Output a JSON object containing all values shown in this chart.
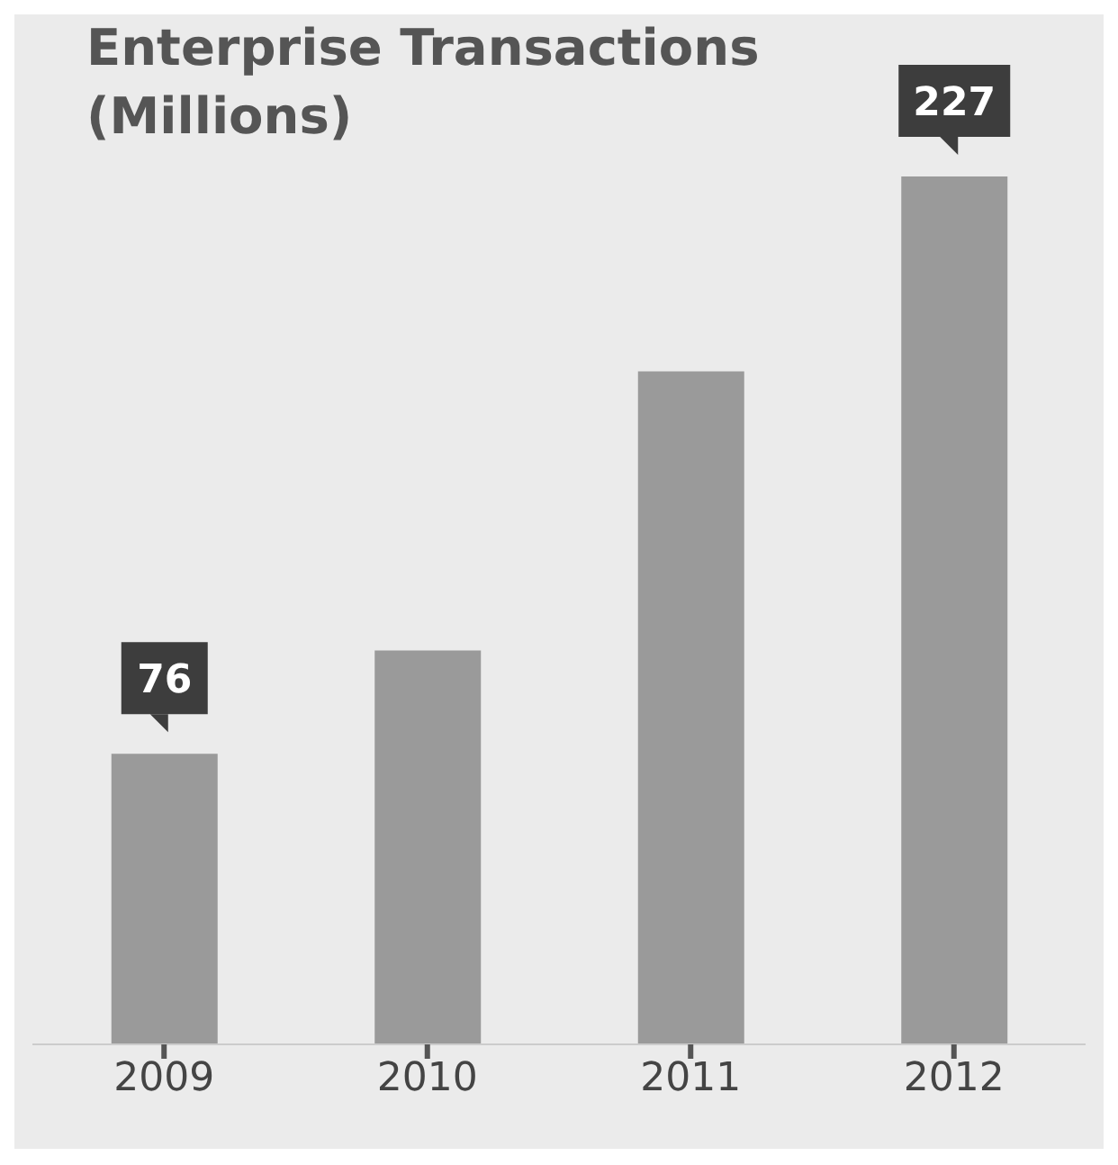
{
  "chart_data": {
    "type": "bar",
    "title": "Enterprise Transactions (Millions)",
    "categories": [
      "2009",
      "2010",
      "2011",
      "2012"
    ],
    "values": [
      76,
      103,
      176,
      227
    ],
    "value_labels": [
      "76",
      null,
      null,
      "227"
    ],
    "color": "#9a9a9a"
  }
}
